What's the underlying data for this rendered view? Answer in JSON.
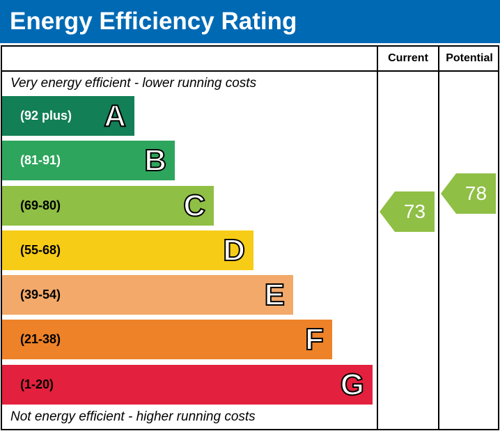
{
  "title": "Energy Efficiency Rating",
  "columns": {
    "current": "Current",
    "potential": "Potential"
  },
  "captions": {
    "top": "Very energy efficient - lower running costs",
    "bottom": "Not energy efficient - higher running costs"
  },
  "chart_data": {
    "type": "bar",
    "bands": [
      {
        "letter": "A",
        "range": "(92 plus)",
        "color": "#127f56",
        "min": 92,
        "max": 100
      },
      {
        "letter": "B",
        "range": "(81-91)",
        "color": "#2ea55c",
        "min": 81,
        "max": 91
      },
      {
        "letter": "C",
        "range": "(69-80)",
        "color": "#8fbf45",
        "min": 69,
        "max": 80
      },
      {
        "letter": "D",
        "range": "(55-68)",
        "color": "#f6cc17",
        "min": 55,
        "max": 68
      },
      {
        "letter": "E",
        "range": "(39-54)",
        "color": "#f2a96a",
        "min": 39,
        "max": 54
      },
      {
        "letter": "F",
        "range": "(21-38)",
        "color": "#ed8228",
        "min": 21,
        "max": 38
      },
      {
        "letter": "G",
        "range": "(1-20)",
        "color": "#e3203d",
        "min": 1,
        "max": 20
      }
    ],
    "current": {
      "value": "73",
      "band": "C",
      "color": "#8fbf45"
    },
    "potential": {
      "value": "78",
      "band": "C",
      "color": "#8fbf45"
    }
  }
}
